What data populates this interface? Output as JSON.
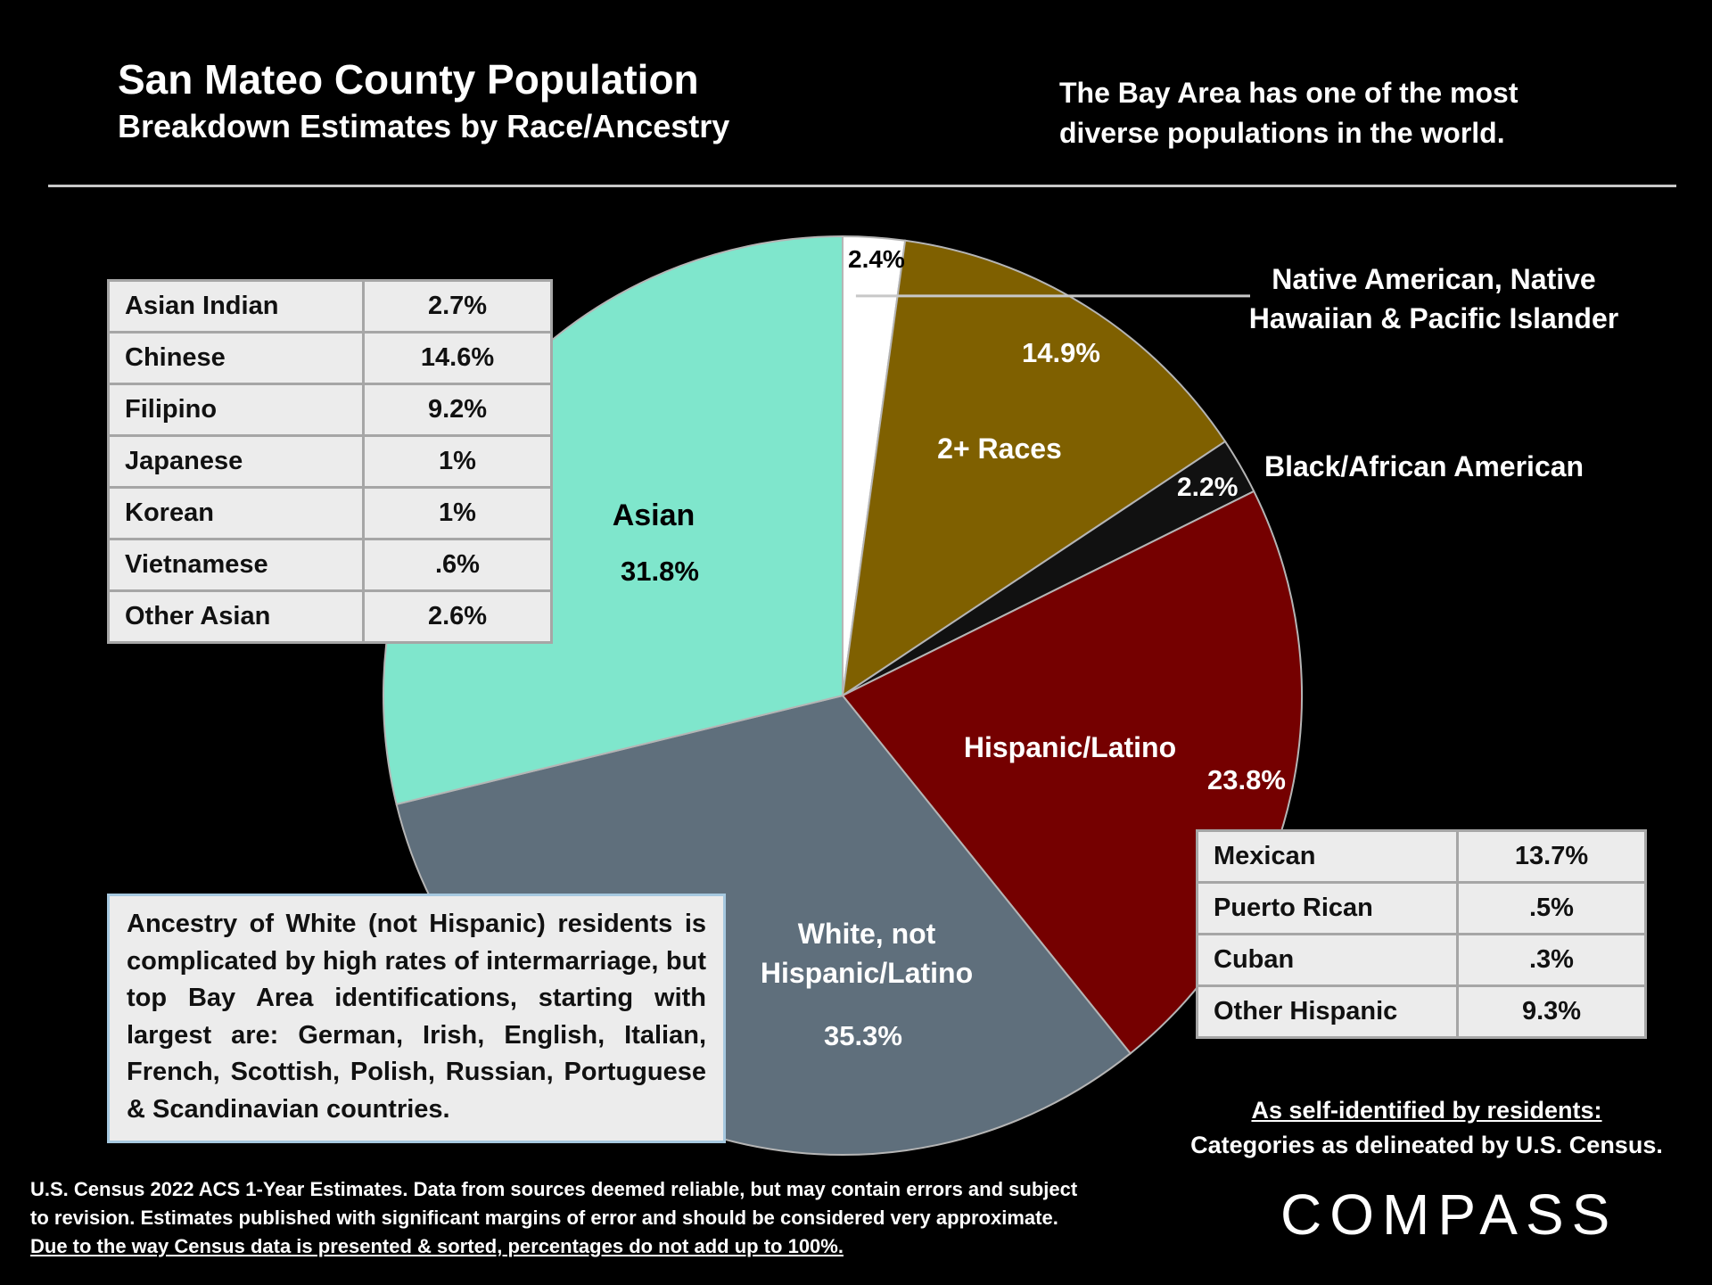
{
  "header": {
    "title": "San Mateo County Population",
    "subtitle": "Breakdown Estimates by Race/Ancestry",
    "tagline_line1": "The Bay Area has one of the most",
    "tagline_line2": "diverse populations in the world."
  },
  "chart_data": {
    "type": "pie",
    "slices": [
      {
        "label": "Native American, Native Hawaiian & Pacific Islander",
        "value": 2.4,
        "value_label": "2.4%",
        "color": "#ffffff"
      },
      {
        "label": "2+ Races",
        "value": 14.9,
        "value_label": "14.9%",
        "color": "#7f6000"
      },
      {
        "label": "Black/African American",
        "value": 2.2,
        "value_label": "2.2%",
        "color": "#111111"
      },
      {
        "label": "Hispanic/Latino",
        "value": 23.8,
        "value_label": "23.8%",
        "color": "#750000"
      },
      {
        "label": "White, not Hispanic/Latino",
        "value": 35.3,
        "value_label": "35.3%",
        "color": "#5f6f7c"
      },
      {
        "label": "Asian",
        "value": 31.8,
        "value_label": "31.8%",
        "color": "#7fe6cc"
      }
    ],
    "callouts": {
      "native_line1": "Native American, Native",
      "native_line2": "Hawaiian & Pacific Islander",
      "black": "Black/African American",
      "white_line1": "White, not",
      "white_line2": "Hispanic/Latino"
    }
  },
  "asian_breakdown": [
    {
      "name": "Asian Indian",
      "value": "2.7%"
    },
    {
      "name": "Chinese",
      "value": "14.6%"
    },
    {
      "name": "Filipino",
      "value": "9.2%"
    },
    {
      "name": "Japanese",
      "value": "1%"
    },
    {
      "name": "Korean",
      "value": "1%"
    },
    {
      "name": "Vietnamese",
      "value": ".6%"
    },
    {
      "name": "Other Asian",
      "value": "2.6%"
    }
  ],
  "hispanic_breakdown": [
    {
      "name": "Mexican",
      "value": "13.7%"
    },
    {
      "name": "Puerto Rican",
      "value": ".5%"
    },
    {
      "name": "Cuban",
      "value": ".3%"
    },
    {
      "name": "Other Hispanic",
      "value": "9.3%"
    }
  ],
  "white_note": "Ancestry of White (not Hispanic) residents is complicated by high rates of  intermarriage, but top Bay Area identifications, starting with largest are: German, Irish, English, Italian, French, Scottish, Polish, Russian, Portuguese & Scandinavian countries.",
  "self_identified": {
    "line1": "As self-identified by residents:",
    "line2": "Categories as delineated by U.S. Census."
  },
  "footnote": {
    "text": "U.S. Census 2022 ACS 1-Year Estimates. Data from sources deemed reliable, but may contain errors and subject to revision. Estimates published with significant margins of error and should be considered very approximate. ",
    "underlined": "Due to the way Census data is presented & sorted, percentages do not add up to 100%."
  },
  "logo": "COMPASS"
}
